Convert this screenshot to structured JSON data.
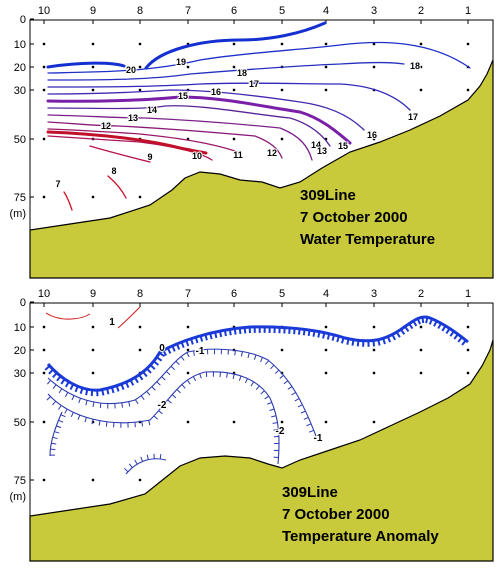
{
  "chart_data": [
    {
      "type": "contour",
      "title": [
        "309Line",
        "7 October 2000",
        "Water Temperature"
      ],
      "x_tick_labels": [
        "10",
        "9",
        "8",
        "7",
        "6",
        "5",
        "4",
        "3",
        "2",
        "1"
      ],
      "y_tick_labels": [
        "0",
        "10",
        "20",
        "30",
        "50",
        "75",
        "(m)"
      ],
      "y_tick_depths": [
        0,
        10,
        20,
        30,
        50,
        75,
        82
      ],
      "contour_labels": [
        "20",
        "19",
        "18",
        "18",
        "17",
        "17",
        "16",
        "16",
        "15",
        "15",
        "14",
        "14",
        "13",
        "13",
        "12",
        "12",
        "11",
        "10",
        "9",
        "8",
        "7"
      ],
      "colors": {
        "land": "#c9c93c",
        "warm": "#1530d0",
        "mid": "#8020a0",
        "cold": "#c0102a"
      }
    },
    {
      "type": "contour",
      "title": [
        "309Line",
        "7 October 2000",
        "Temperature Anomaly"
      ],
      "x_tick_labels": [
        "10",
        "9",
        "8",
        "7",
        "6",
        "5",
        "4",
        "3",
        "2",
        "1"
      ],
      "y_tick_labels": [
        "0",
        "10",
        "20",
        "30",
        "50",
        "75",
        "(m)"
      ],
      "y_tick_depths": [
        0,
        10,
        20,
        30,
        50,
        75,
        82
      ],
      "contour_labels": [
        "1",
        "0",
        "-1",
        "-2",
        "-2",
        "-1"
      ],
      "colors": {
        "land": "#c9c93c",
        "positive": "#d01818",
        "zero": "#1a3ad8",
        "negative": "#2a3ab0"
      }
    }
  ]
}
